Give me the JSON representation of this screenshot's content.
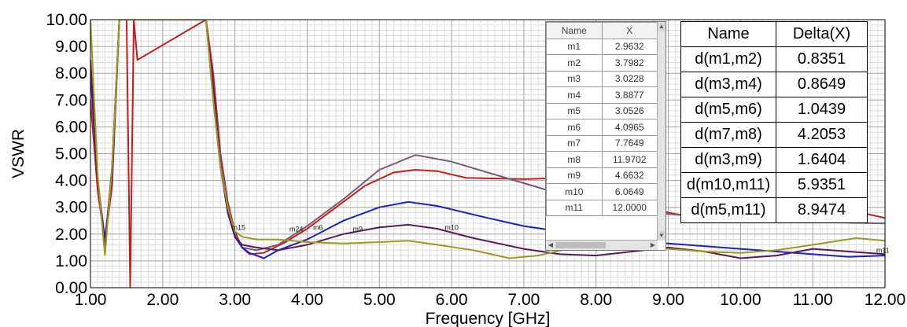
{
  "chart_data": {
    "type": "line",
    "xlabel": "Frequency [GHz]",
    "ylabel": "VSWR",
    "xlim": [
      1.0,
      12.0
    ],
    "ylim": [
      0.0,
      10.0
    ],
    "xticks": [
      "1.00",
      "2.00",
      "3.00",
      "4.00",
      "5.00",
      "6.00",
      "7.00",
      "8.00",
      "9.00",
      "10.00",
      "11.00",
      "12.00"
    ],
    "yticks": [
      "0.00",
      "1.00",
      "2.00",
      "3.00",
      "4.00",
      "5.00",
      "6.00",
      "7.00",
      "8.00",
      "9.00",
      "10.00"
    ],
    "grid": true,
    "series": [
      {
        "color": "#c02020",
        "points": [
          [
            1.0,
            7.0
          ],
          [
            1.1,
            3.6
          ],
          [
            1.2,
            1.7
          ],
          [
            1.3,
            3.8
          ],
          [
            1.4,
            10.0
          ],
          [
            1.5,
            10.0
          ],
          [
            1.55,
            0.0
          ],
          [
            1.6,
            10.0
          ],
          [
            1.65,
            8.5
          ],
          [
            2.6,
            10.0
          ],
          [
            2.7,
            8.0
          ],
          [
            2.8,
            5.0
          ],
          [
            2.9,
            3.2
          ],
          [
            3.0,
            2.1
          ],
          [
            3.1,
            1.5
          ],
          [
            3.2,
            1.25
          ],
          [
            3.4,
            1.3
          ],
          [
            3.7,
            1.7
          ],
          [
            4.0,
            2.2
          ],
          [
            4.4,
            3.0
          ],
          [
            4.8,
            3.8
          ],
          [
            5.2,
            4.3
          ],
          [
            5.5,
            4.4
          ],
          [
            5.8,
            4.35
          ],
          [
            6.2,
            4.1
          ],
          [
            7.0,
            4.05
          ],
          [
            7.6,
            4.1
          ],
          [
            8.0,
            3.8
          ],
          [
            8.5,
            3.3
          ],
          [
            9.0,
            2.8
          ],
          [
            9.5,
            2.55
          ],
          [
            10.0,
            2.45
          ],
          [
            10.5,
            2.55
          ],
          [
            11.0,
            2.75
          ],
          [
            11.5,
            2.9
          ],
          [
            12.0,
            2.6
          ]
        ]
      },
      {
        "color": "#7a5878",
        "points": [
          [
            1.0,
            8.2
          ],
          [
            1.1,
            4.0
          ],
          [
            1.2,
            1.6
          ],
          [
            1.3,
            4.5
          ],
          [
            1.4,
            10.0
          ],
          [
            2.6,
            10.0
          ],
          [
            2.7,
            7.5
          ],
          [
            2.8,
            4.8
          ],
          [
            2.9,
            3.0
          ],
          [
            3.0,
            2.0
          ],
          [
            3.1,
            1.5
          ],
          [
            3.3,
            1.4
          ],
          [
            3.6,
            1.6
          ],
          [
            4.0,
            2.3
          ],
          [
            4.5,
            3.3
          ],
          [
            5.0,
            4.4
          ],
          [
            5.5,
            4.95
          ],
          [
            6.0,
            4.7
          ],
          [
            6.5,
            4.3
          ],
          [
            7.0,
            3.9
          ],
          [
            7.5,
            3.5
          ],
          [
            8.0,
            3.2
          ],
          [
            8.5,
            2.9
          ],
          [
            9.0,
            2.75
          ],
          [
            10.0,
            2.55
          ],
          [
            11.0,
            2.45
          ],
          [
            12.0,
            2.4
          ]
        ]
      },
      {
        "color": "#2020c0",
        "points": [
          [
            1.0,
            8.0
          ],
          [
            1.1,
            4.0
          ],
          [
            1.2,
            1.8
          ],
          [
            1.3,
            4.2
          ],
          [
            1.4,
            10.0
          ],
          [
            2.6,
            10.0
          ],
          [
            2.7,
            7.0
          ],
          [
            2.8,
            4.5
          ],
          [
            2.9,
            2.8
          ],
          [
            3.0,
            1.9
          ],
          [
            3.1,
            1.5
          ],
          [
            3.2,
            1.3
          ],
          [
            3.4,
            1.1
          ],
          [
            3.6,
            1.4
          ],
          [
            4.0,
            1.8
          ],
          [
            4.5,
            2.5
          ],
          [
            5.0,
            3.0
          ],
          [
            5.4,
            3.2
          ],
          [
            5.8,
            3.05
          ],
          [
            6.5,
            2.6
          ],
          [
            7.0,
            2.3
          ],
          [
            7.5,
            2.1
          ],
          [
            8.0,
            1.9
          ],
          [
            8.5,
            1.75
          ],
          [
            9.0,
            1.65
          ],
          [
            9.5,
            1.55
          ],
          [
            10.0,
            1.45
          ],
          [
            10.5,
            1.35
          ],
          [
            11.0,
            1.25
          ],
          [
            11.5,
            1.15
          ],
          [
            12.0,
            1.2
          ]
        ]
      },
      {
        "color": "#5a1a5a",
        "points": [
          [
            1.0,
            8.5
          ],
          [
            1.1,
            4.0
          ],
          [
            1.2,
            1.5
          ],
          [
            1.3,
            4.5
          ],
          [
            1.4,
            10.0
          ],
          [
            2.6,
            10.0
          ],
          [
            2.7,
            7.5
          ],
          [
            2.8,
            4.6
          ],
          [
            2.9,
            2.9
          ],
          [
            3.0,
            1.9
          ],
          [
            3.1,
            1.6
          ],
          [
            3.3,
            1.5
          ],
          [
            3.6,
            1.4
          ],
          [
            4.0,
            1.6
          ],
          [
            4.5,
            2.0
          ],
          [
            5.0,
            2.25
          ],
          [
            5.4,
            2.35
          ],
          [
            5.8,
            2.2
          ],
          [
            6.3,
            1.85
          ],
          [
            7.0,
            1.45
          ],
          [
            7.5,
            1.25
          ],
          [
            8.0,
            1.2
          ],
          [
            8.5,
            1.35
          ],
          [
            9.0,
            1.5
          ],
          [
            9.5,
            1.35
          ],
          [
            10.0,
            1.1
          ],
          [
            10.5,
            1.2
          ],
          [
            11.0,
            1.45
          ],
          [
            11.5,
            1.35
          ],
          [
            12.0,
            1.25
          ]
        ]
      },
      {
        "color": "#9a9a20",
        "points": [
          [
            1.0,
            10.0
          ],
          [
            1.1,
            4.2
          ],
          [
            1.2,
            1.2
          ],
          [
            1.3,
            4.5
          ],
          [
            1.4,
            10.0
          ],
          [
            2.6,
            10.0
          ],
          [
            2.7,
            7.0
          ],
          [
            2.8,
            4.5
          ],
          [
            2.9,
            3.0
          ],
          [
            3.0,
            2.1
          ],
          [
            3.1,
            1.9
          ],
          [
            3.3,
            1.8
          ],
          [
            3.6,
            1.8
          ],
          [
            4.0,
            1.7
          ],
          [
            4.5,
            1.65
          ],
          [
            5.0,
            1.7
          ],
          [
            5.4,
            1.75
          ],
          [
            5.8,
            1.6
          ],
          [
            6.3,
            1.4
          ],
          [
            6.8,
            1.1
          ],
          [
            7.2,
            1.2
          ],
          [
            7.6,
            1.45
          ],
          [
            8.0,
            1.5
          ],
          [
            8.5,
            1.5
          ],
          [
            9.0,
            1.45
          ],
          [
            9.5,
            1.35
          ],
          [
            10.0,
            1.3
          ],
          [
            10.5,
            1.4
          ],
          [
            11.0,
            1.6
          ],
          [
            11.6,
            1.85
          ],
          [
            12.0,
            1.75
          ]
        ]
      }
    ],
    "markers": [
      {
        "label": "m1",
        "x": 2.9632
      },
      {
        "label": "m2",
        "x": 3.7982
      },
      {
        "label": "m3",
        "x": 3.0228
      },
      {
        "label": "m4",
        "x": 3.8877
      },
      {
        "label": "m5",
        "x": 3.0526
      },
      {
        "label": "m6",
        "x": 4.0965
      },
      {
        "label": "m7",
        "x": 7.7649
      },
      {
        "label": "m8",
        "x": 11.9702
      },
      {
        "label": "m9",
        "x": 4.6632
      },
      {
        "label": "m10",
        "x": 6.0649
      },
      {
        "label": "m11",
        "x": 12.0
      }
    ],
    "marker_labels_shown": [
      {
        "text": "m15",
        "x": 3.05,
        "y": 2.15
      },
      {
        "text": "m24",
        "x": 3.85,
        "y": 2.1
      },
      {
        "text": "m6",
        "x": 4.15,
        "y": 2.15
      },
      {
        "text": "m9",
        "x": 4.7,
        "y": 2.1
      },
      {
        "text": "m10",
        "x": 6.0,
        "y": 2.15
      },
      {
        "text": "m11",
        "x": 11.97,
        "y": 1.3
      }
    ]
  },
  "marker_table": {
    "headers": [
      "Name",
      "X"
    ],
    "rows": [
      [
        "m1",
        "2.9632"
      ],
      [
        "m2",
        "3.7982"
      ],
      [
        "m3",
        "3.0228"
      ],
      [
        "m4",
        "3.8877"
      ],
      [
        "m5",
        "3.0526"
      ],
      [
        "m6",
        "4.0965"
      ],
      [
        "m7",
        "7.7649"
      ],
      [
        "m8",
        "11.9702"
      ],
      [
        "m9",
        "4.6632"
      ],
      [
        "m10",
        "6.0649"
      ],
      [
        "m11",
        "12.0000"
      ]
    ]
  },
  "delta_table": {
    "headers": [
      "Name",
      "Delta(X)"
    ],
    "rows": [
      [
        "d(m1,m2)",
        "0.8351"
      ],
      [
        "d(m3,m4)",
        "0.8649"
      ],
      [
        "d(m5,m6)",
        "1.0439"
      ],
      [
        "d(m7,m8)",
        "4.2053"
      ],
      [
        "d(m3,m9)",
        "1.6404"
      ],
      [
        "d(m10,m11)",
        "5.9351"
      ],
      [
        "d(m5,m11)",
        "8.9474"
      ]
    ]
  }
}
